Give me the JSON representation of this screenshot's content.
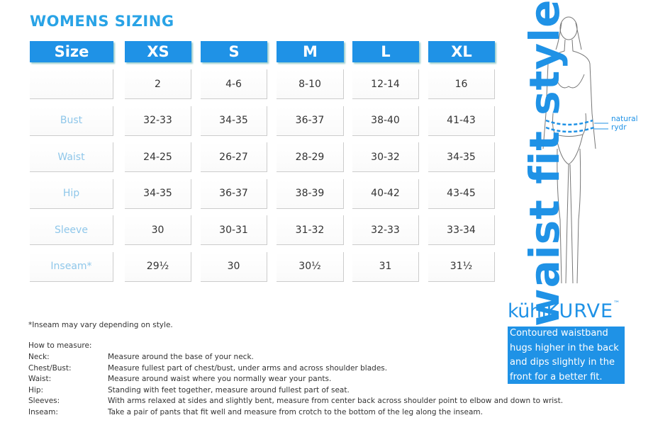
{
  "title": "WOMENS SIZING",
  "table": {
    "header": [
      "Size",
      "XS",
      "S",
      "M",
      "L",
      "XL"
    ],
    "rows": [
      [
        "",
        "2",
        "4-6",
        "8-10",
        "12-14",
        "16"
      ],
      [
        "Bust",
        "32-33",
        "34-35",
        "36-37",
        "38-40",
        "41-43"
      ],
      [
        "Waist",
        "24-25",
        "26-27",
        "28-29",
        "30-32",
        "34-35"
      ],
      [
        "Hip",
        "34-35",
        "36-37",
        "38-39",
        "40-42",
        "43-45"
      ],
      [
        "Sleeve",
        "30",
        "30-31",
        "31-32",
        "32-33",
        "33-34"
      ],
      [
        "Inseam*",
        "29½",
        "30",
        "30½",
        "31",
        "31½"
      ]
    ]
  },
  "note": "*Inseam may vary depending on style.",
  "how_to_measure": {
    "title": "How to measure:",
    "items": [
      {
        "label": "Neck:",
        "text": "Measure around the base of your neck."
      },
      {
        "label": "Chest/Bust:",
        "text": "Measure fullest part of chest/bust, under arms and across shoulder blades."
      },
      {
        "label": "Waist:",
        "text": "Measure around waist where you normally wear your pants."
      },
      {
        "label": "Hip:",
        "text": "Standing with feet together, measure around fullest part of seat."
      },
      {
        "label": "Sleeves:",
        "text": "With arms relaxed at sides and slightly bent, measure from center back across shoulder point to elbow and down to wrist."
      },
      {
        "label": "Inseam:",
        "text": "Take a pair of pants that fit well and measure from crotch to the bottom of the leg along the inseam."
      }
    ]
  },
  "side": {
    "heading": "waist fit styles",
    "callout": [
      "natural",
      "rydr"
    ],
    "brand": {
      "light": "kühl",
      "bold": "KURVE",
      "mark": "™"
    },
    "description": [
      "Contoured waistband",
      "hugs higher in the back",
      "and dips slightly in the",
      "front for a better fit."
    ]
  }
}
